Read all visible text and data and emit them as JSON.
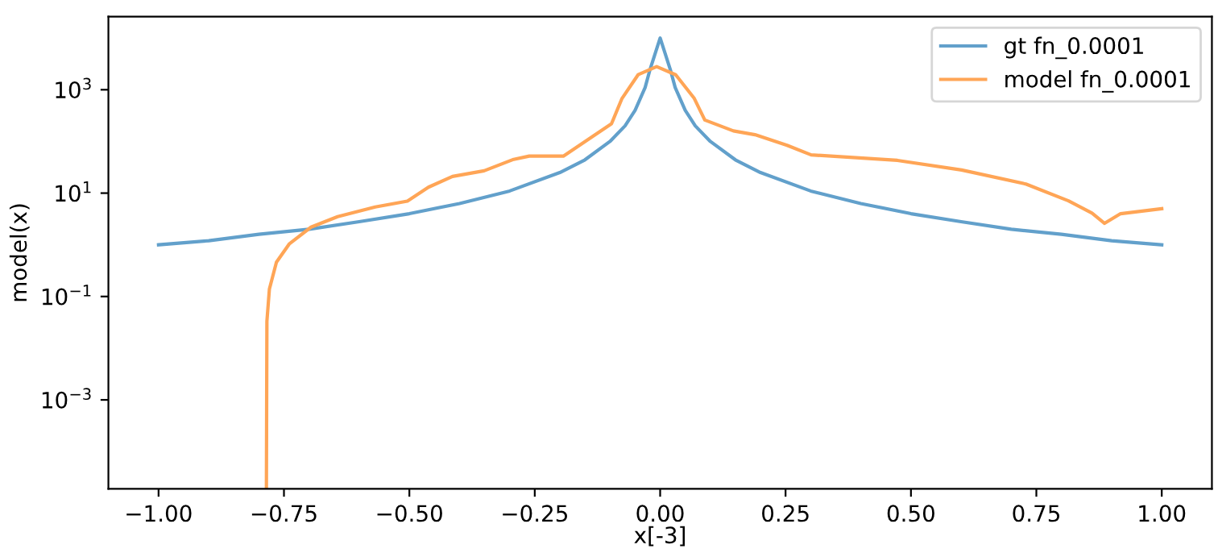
{
  "chart_data": {
    "type": "line",
    "xlabel": "x[-3]",
    "ylabel": "model(x)",
    "log": "y",
    "legend": "top right",
    "grid": false,
    "xlim": [
      -1.1,
      1.1
    ],
    "xticks": [
      {
        "value": -1,
        "label": "−1.00"
      },
      {
        "value": -0.75,
        "label": "−0.75"
      },
      {
        "value": -0.5,
        "label": "−0.50"
      },
      {
        "value": -0.25,
        "label": "−0.25"
      },
      {
        "value": 0,
        "label": "0.00"
      },
      {
        "value": 0.25,
        "label": "0.25"
      },
      {
        "value": 0.5,
        "label": "0.50"
      },
      {
        "value": 0.75,
        "label": "0.75"
      },
      {
        "value": 1,
        "label": "1.00"
      }
    ],
    "ylim": [
      1.9e-05,
      26000
    ],
    "yticks": [
      {
        "value": 0.001,
        "label": "10$^{−3}$"
      },
      {
        "value": 0.1,
        "label": "10$^{−1}$"
      },
      {
        "value": 10,
        "label": "10$^{1}$"
      },
      {
        "value": 1000,
        "label": "10$^{3}$"
      }
    ],
    "series": [
      {
        "name": "gt fn_0.0001",
        "color": "#62a0cb",
        "x": [
          -1,
          -0.9,
          -0.8,
          -0.7,
          -0.6,
          -0.5,
          -0.4,
          -0.3,
          -0.2,
          -0.15,
          -0.1,
          -0.07,
          -0.05,
          -0.03,
          -0.02,
          0,
          0.02,
          0.03,
          0.05,
          0.07,
          0.1,
          0.15,
          0.2,
          0.3,
          0.4,
          0.5,
          0.6,
          0.7,
          0.8,
          0.9,
          1
        ],
        "values": [
          1,
          1.2,
          1.6,
          2,
          2.8,
          4,
          6.3,
          11,
          25,
          44,
          100,
          200,
          400,
          1100,
          2500,
          10000,
          2500,
          1100,
          400,
          200,
          100,
          44,
          25,
          11,
          6.3,
          4,
          2.8,
          2,
          1.6,
          1.2,
          1
        ]
      },
      {
        "name": "model fn_0.0001",
        "color": "#ffa556",
        "x": [
          -0.785,
          -0.784,
          -0.779,
          -0.765,
          -0.739,
          -0.696,
          -0.643,
          -0.568,
          -0.504,
          -0.462,
          -0.414,
          -0.351,
          -0.292,
          -0.261,
          -0.193,
          -0.134,
          -0.097,
          -0.076,
          -0.044,
          -0.007,
          0.031,
          0.068,
          0.089,
          0.146,
          0.189,
          0.253,
          0.301,
          0.473,
          0.601,
          0.729,
          0.814,
          0.861,
          0.886,
          0.918,
          1.0
        ],
        "values": [
          2e-05,
          0.033,
          0.14,
          0.46,
          1.05,
          2.2,
          3.5,
          5.4,
          7,
          13,
          21,
          27,
          45,
          52,
          52,
          126,
          220,
          680,
          1950,
          2800,
          1950,
          680,
          260,
          160,
          135,
          84,
          55,
          43,
          28,
          15,
          7.1,
          4.1,
          2.6,
          4,
          5
        ]
      }
    ]
  }
}
